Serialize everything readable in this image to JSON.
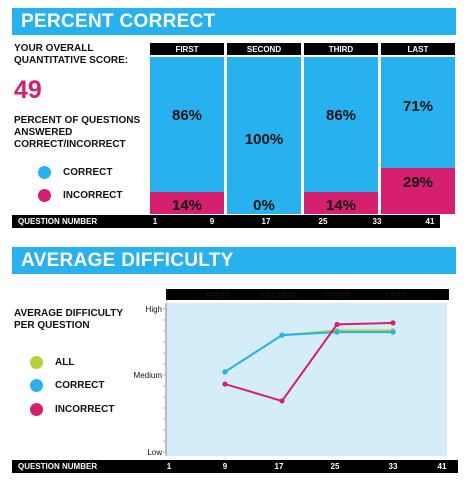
{
  "section1": {
    "title": "PERCENT CORRECT",
    "score_label": "YOUR OVERALL QUANTITATIVE SCORE:",
    "score_value": "49",
    "pct_label": "PERCENT OF QUESTIONS ANSWERED CORRECT/INCORRECT",
    "legend": [
      {
        "label": "CORRECT",
        "color": "#27b1ee"
      },
      {
        "label": "INCORRECT",
        "color": "#d6206f"
      }
    ],
    "axis_title": "QUESTION NUMBER",
    "axis_ticks": [
      "1",
      "9",
      "17",
      "25",
      "33",
      "41"
    ]
  },
  "section2": {
    "title": "AVERAGE DIFFICULTY",
    "label": "AVERAGE DIFFICULTY PER QUESTION",
    "legend": [
      {
        "label": "ALL",
        "color": "#b6d13a"
      },
      {
        "label": "CORRECT",
        "color": "#27b1ee"
      },
      {
        "label": "INCORRECT",
        "color": "#d6206f"
      }
    ],
    "axis_title": "QUESTION NUMBER",
    "axis_ticks": [
      "1",
      "9",
      "17",
      "25",
      "33",
      "41"
    ]
  },
  "chart_data": [
    {
      "type": "bar",
      "categories": [
        "FIRST",
        "SECOND",
        "THIRD",
        "LAST"
      ],
      "series": [
        {
          "name": "CORRECT",
          "values": [
            86,
            100,
            86,
            71
          ],
          "labels": [
            "86%",
            "100%",
            "86%",
            "71%"
          ]
        },
        {
          "name": "INCORRECT",
          "values": [
            14,
            0,
            14,
            29
          ],
          "labels": [
            "14%",
            "0%",
            "14%",
            "29%"
          ]
        }
      ],
      "stacked": true,
      "ylim": [
        0,
        100
      ]
    },
    {
      "type": "line",
      "categories": [
        "FIRST",
        "SECOND",
        "THIRD",
        "LAST"
      ],
      "yticks": [
        "High",
        "Medium",
        "Low"
      ],
      "x": [
        9,
        17,
        25,
        33
      ],
      "series": [
        {
          "name": "ALL",
          "color": "#b6d13a",
          "values": [
            0.55,
            0.79,
            0.82,
            0.82
          ]
        },
        {
          "name": "CORRECT",
          "color": "#27b1ee",
          "values": [
            0.55,
            0.79,
            0.81,
            0.81
          ]
        },
        {
          "name": "INCORRECT",
          "color": "#d6206f",
          "values": [
            0.47,
            0.36,
            0.86,
            0.87
          ]
        }
      ],
      "ylim": [
        0,
        1
      ]
    }
  ]
}
